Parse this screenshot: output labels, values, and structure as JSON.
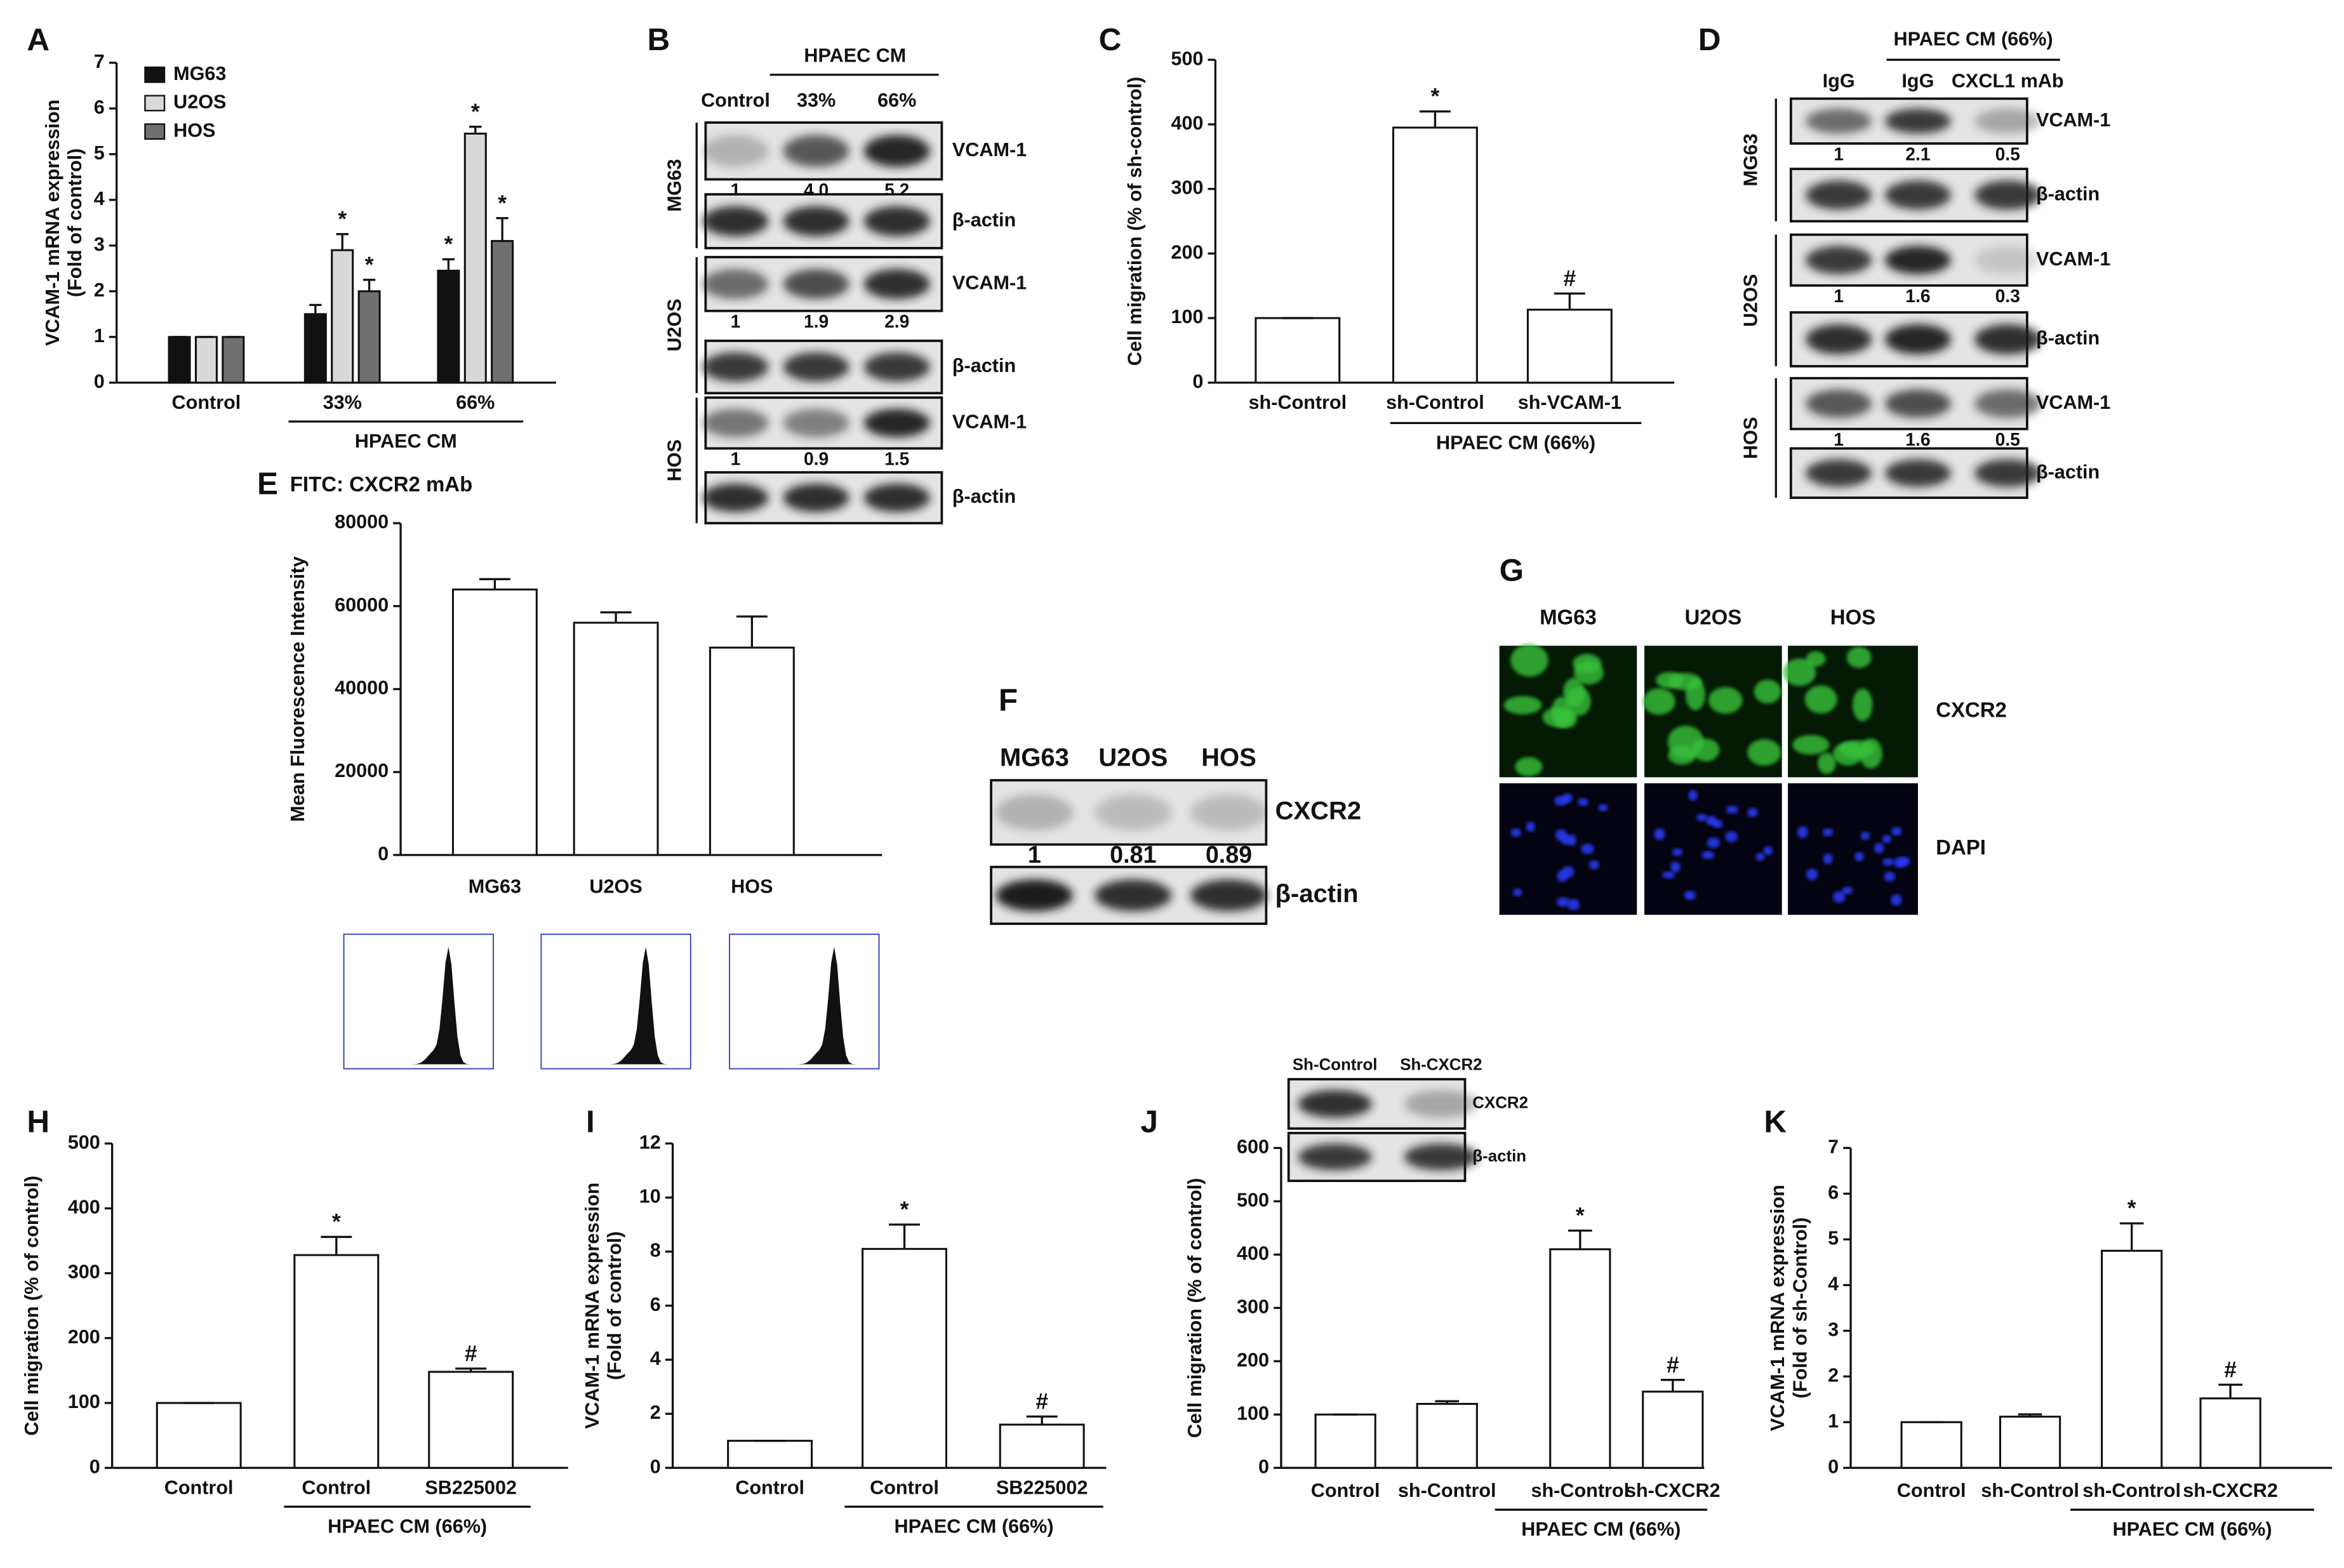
{
  "chart_data": [
    {
      "panel": "A",
      "type": "bar",
      "categories": [
        "Control",
        "33%",
        "66%"
      ],
      "group_label": "HPAEC CM",
      "series": [
        {
          "name": "MG63",
          "color": "#111111",
          "values": [
            1,
            1.5,
            2.45
          ],
          "errors": [
            0,
            0.2,
            0.25
          ],
          "markers": [
            null,
            null,
            "*"
          ]
        },
        {
          "name": "U2OS",
          "color": "#d9d9d9",
          "values": [
            1,
            2.9,
            5.45
          ],
          "errors": [
            0,
            0.35,
            0.15
          ],
          "markers": [
            null,
            "*",
            "*"
          ]
        },
        {
          "name": "HOS",
          "color": "#707070",
          "values": [
            1,
            2,
            3.1
          ],
          "errors": [
            0,
            0.25,
            0.5
          ],
          "markers": [
            null,
            "*",
            "*"
          ]
        }
      ],
      "ylabel": [
        "VCAM-1 mRNA expression",
        "(Fold of control)"
      ],
      "ylim": [
        0,
        7
      ],
      "yticks": [
        0,
        1,
        2,
        3,
        4,
        5,
        6,
        7
      ]
    },
    {
      "panel": "C",
      "type": "bar",
      "categories": [
        "sh-Control",
        "sh-Control",
        "sh-VCAM-1"
      ],
      "group_label": "HPAEC CM (66%)",
      "values": [
        100,
        395,
        113
      ],
      "errors": [
        0,
        25,
        25
      ],
      "markers": [
        null,
        "*",
        "#"
      ],
      "color": "#ffffff",
      "ylabel": [
        "Cell migration (% of sh-control)"
      ],
      "ylim": [
        0,
        500
      ],
      "yticks": [
        0,
        100,
        200,
        300,
        400,
        500
      ]
    },
    {
      "panel": "E",
      "type": "bar",
      "title": "FITC: CXCR2 mAb",
      "categories": [
        "MG63",
        "U2OS",
        "HOS"
      ],
      "values": [
        64000,
        56000,
        50000
      ],
      "errors": [
        2500,
        2500,
        7500
      ],
      "color": "#ffffff",
      "ylabel": [
        "Mean Fluorescence Intensity"
      ],
      "ylim": [
        0,
        80000
      ],
      "yticks": [
        0,
        20000,
        40000,
        60000,
        80000
      ]
    },
    {
      "panel": "H",
      "type": "bar",
      "categories": [
        "Control",
        "Control",
        "SB225002"
      ],
      "group_label": "HPAEC CM (66%)",
      "values": [
        100,
        328,
        148
      ],
      "errors": [
        0,
        28,
        5
      ],
      "markers": [
        null,
        "*",
        "#"
      ],
      "color": "#ffffff",
      "ylabel": [
        "Cell migration (% of control)"
      ],
      "ylim": [
        0,
        500
      ],
      "yticks": [
        0,
        100,
        200,
        300,
        400,
        500
      ]
    },
    {
      "panel": "I",
      "type": "bar",
      "categories": [
        "Control",
        "Control",
        "SB225002"
      ],
      "group_label": "HPAEC CM (66%)",
      "values": [
        1,
        8.1,
        1.6
      ],
      "errors": [
        0,
        0.9,
        0.3
      ],
      "markers": [
        null,
        "*",
        "#"
      ],
      "color": "#ffffff",
      "ylabel": [
        "VCAM-1 mRNA expression",
        "(Fold of control)"
      ],
      "ylim": [
        0,
        12
      ],
      "yticks": [
        0,
        2,
        4,
        6,
        8,
        10,
        12
      ]
    },
    {
      "panel": "J",
      "type": "bar",
      "categories": [
        "Control",
        "sh-Control",
        "sh-Control",
        "sh-CXCR2"
      ],
      "group_label": "HPAEC CM (66%)",
      "values": [
        100,
        120,
        410,
        143
      ],
      "errors": [
        0,
        5,
        35,
        22
      ],
      "markers": [
        null,
        null,
        "*",
        "#"
      ],
      "color": "#ffffff",
      "ylabel": [
        "Cell migration (% of control)"
      ],
      "ylim": [
        0,
        600
      ],
      "yticks": [
        0,
        100,
        200,
        300,
        400,
        500,
        600
      ]
    },
    {
      "panel": "K",
      "type": "bar",
      "categories": [
        "Control",
        "sh-Control",
        "sh-Control",
        "sh-CXCR2"
      ],
      "group_label": "HPAEC CM (66%)",
      "values": [
        1,
        1.12,
        4.75,
        1.52
      ],
      "errors": [
        0,
        0.05,
        0.6,
        0.3
      ],
      "markers": [
        null,
        null,
        "*",
        "#"
      ],
      "color": "#ffffff",
      "ylabel": [
        "VCAM-1 mRNA expression",
        "(Fold of sh-Control)"
      ],
      "ylim": [
        0,
        7
      ],
      "yticks": [
        0,
        1,
        2,
        3,
        4,
        5,
        6,
        7
      ]
    }
  ],
  "blots": [
    {
      "panel": "B",
      "header": "HPAEC CM",
      "columns": [
        "Control",
        "33%",
        "66%"
      ],
      "groups": [
        {
          "name": "MG63",
          "rows": [
            {
              "label": "VCAM-1",
              "quant": [
                "1",
                "4.0",
                "5.2"
              ]
            },
            {
              "label": "β-actin"
            }
          ]
        },
        {
          "name": "U2OS",
          "rows": [
            {
              "label": "VCAM-1",
              "quant": [
                "1",
                "1.9",
                "2.9"
              ]
            },
            {
              "label": "β-actin"
            }
          ]
        },
        {
          "name": "HOS",
          "rows": [
            {
              "label": "VCAM-1",
              "quant": [
                "1",
                "0.9",
                "1.5"
              ]
            },
            {
              "label": "β-actin"
            }
          ]
        }
      ]
    },
    {
      "panel": "D",
      "header": "HPAEC CM (66%)",
      "columns": [
        "IgG",
        "IgG",
        "CXCL1 mAb"
      ],
      "groups": [
        {
          "name": "MG63",
          "rows": [
            {
              "label": "VCAM-1",
              "quant": [
                "1",
                "2.1",
                "0.5"
              ]
            },
            {
              "label": "β-actin"
            }
          ]
        },
        {
          "name": "U2OS",
          "rows": [
            {
              "label": "VCAM-1",
              "quant": [
                "1",
                "1.6",
                "0.3"
              ]
            },
            {
              "label": "β-actin"
            }
          ]
        },
        {
          "name": "HOS",
          "rows": [
            {
              "label": "VCAM-1",
              "quant": [
                "1",
                "1.6",
                "0.5"
              ]
            },
            {
              "label": "β-actin"
            }
          ]
        }
      ]
    },
    {
      "panel": "F",
      "columns": [
        "MG63",
        "U2OS",
        "HOS"
      ],
      "groups": [
        {
          "rows": [
            {
              "label": "CXCR2",
              "quant": [
                "1",
                "0.81",
                "0.89"
              ]
            },
            {
              "label": "β-actin"
            }
          ]
        }
      ]
    },
    {
      "columns": [
        "Sh-Control",
        "Sh-CXCR2"
      ],
      "groups": [
        {
          "rows": [
            {
              "label": "CXCR2"
            },
            {
              "label": "β-actin"
            }
          ]
        }
      ]
    }
  ],
  "images": {
    "panel": "G",
    "columns": [
      "MG63",
      "U2OS",
      "HOS"
    ],
    "rows": [
      "CXCR2",
      "DAPI"
    ]
  }
}
